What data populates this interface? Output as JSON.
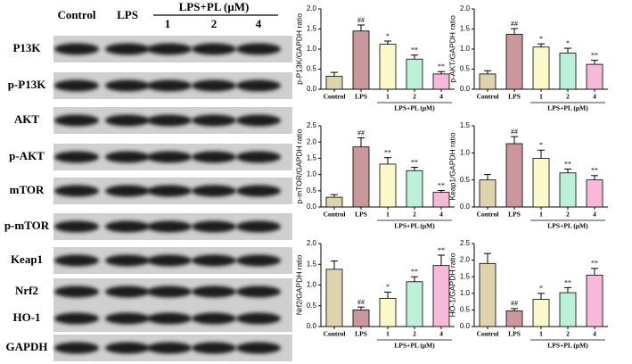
{
  "blot": {
    "headers": {
      "control": "Control",
      "lps": "LPS",
      "group": "LPS+PL (μM)",
      "doses": [
        "1",
        "2",
        "4"
      ]
    },
    "rows": [
      "P13K",
      "p-P13K",
      "AKT",
      "p-AKT",
      "mTOR",
      "p-mTOR",
      "Keap1",
      "Nrf2",
      "HO-1",
      "GAPDH"
    ]
  },
  "chart_data": [
    {
      "type": "bar",
      "ylabel": "p-P13K/GAPDH ratio",
      "categories": [
        "Control",
        "LPS",
        "1",
        "2",
        "4"
      ],
      "group_label": "LPS+PL (μM)",
      "values": [
        0.32,
        1.45,
        1.12,
        0.75,
        0.38
      ],
      "errors": [
        0.1,
        0.15,
        0.08,
        0.1,
        0.06
      ],
      "annotations": [
        null,
        "##",
        "*",
        "**",
        "**"
      ],
      "colors": [
        "#ddd3ad",
        "#c9979c",
        "#fbf8c9",
        "#bdf0d8",
        "#f7b9da"
      ],
      "ylim": [
        0,
        2
      ],
      "yticks": [
        {
          "value": 0,
          "label": "0.0"
        },
        0.5,
        {
          "value": 1,
          "label": "1.0"
        },
        1.5,
        {
          "value": 2,
          "label": "2.0"
        }
      ]
    },
    {
      "type": "bar",
      "ylabel": "p-AKT/GAPDH ratio",
      "categories": [
        "Control",
        "LPS",
        "1",
        "2",
        "4"
      ],
      "group_label": "LPS+PL (μM)",
      "values": [
        0.38,
        1.37,
        1.05,
        0.9,
        0.62
      ],
      "errors": [
        0.08,
        0.14,
        0.08,
        0.12,
        0.1
      ],
      "annotations": [
        null,
        "##",
        "*",
        "*",
        "**"
      ],
      "colors": [
        "#ddd3ad",
        "#c9979c",
        "#fbf8c9",
        "#bdf0d8",
        "#f7b9da"
      ],
      "ylim": [
        0,
        2
      ],
      "yticks": [
        {
          "value": 0,
          "label": "0.0"
        },
        0.5,
        {
          "value": 1,
          "label": "1.0"
        },
        1.5,
        {
          "value": 2,
          "label": "2.0"
        }
      ]
    },
    {
      "type": "bar",
      "ylabel": "p-mTOR/GAPDH ratio",
      "categories": [
        "Control",
        "LPS",
        "1",
        "2",
        "4"
      ],
      "group_label": "LPS+PL (μM)",
      "values": [
        0.3,
        1.85,
        1.32,
        1.12,
        0.45
      ],
      "errors": [
        0.08,
        0.28,
        0.2,
        0.1,
        0.06
      ],
      "annotations": [
        null,
        "##",
        "**",
        "**",
        "**"
      ],
      "colors": [
        "#ddd3ad",
        "#c9979c",
        "#fbf8c9",
        "#bdf0d8",
        "#f7b9da"
      ],
      "ylim": [
        0,
        2.5
      ],
      "yticks": [
        {
          "value": 0,
          "label": "0.0"
        },
        0.5,
        {
          "value": 1,
          "label": "1.0"
        },
        1.5,
        {
          "value": 2,
          "label": "2.0"
        },
        2.5
      ]
    },
    {
      "type": "bar",
      "ylabel": "Keap1/GAPDH ratio",
      "categories": [
        "Control",
        "LPS",
        "1",
        "2",
        "4"
      ],
      "group_label": "LPS+PL (μM)",
      "values": [
        0.5,
        1.17,
        0.9,
        0.63,
        0.5
      ],
      "errors": [
        0.1,
        0.13,
        0.15,
        0.07,
        0.08
      ],
      "annotations": [
        null,
        "##",
        "*",
        "**",
        "**"
      ],
      "colors": [
        "#ddd3ad",
        "#c9979c",
        "#fbf8c9",
        "#bdf0d8",
        "#f7b9da"
      ],
      "ylim": [
        0,
        1.5
      ],
      "yticks": [
        {
          "value": 0,
          "label": "0.0"
        },
        0.5,
        {
          "value": 1,
          "label": "1.0"
        },
        1.5
      ]
    },
    {
      "type": "bar",
      "ylabel": "Nrf2/GAPDH ratio",
      "categories": [
        "Control",
        "LPS",
        "1",
        "2",
        "4"
      ],
      "group_label": "LPS+PL (μM)",
      "values": [
        1.38,
        0.4,
        0.68,
        1.08,
        1.47
      ],
      "errors": [
        0.2,
        0.07,
        0.15,
        0.12,
        0.25
      ],
      "annotations": [
        null,
        "##",
        "*",
        "**",
        "**"
      ],
      "colors": [
        "#ddd3ad",
        "#c9979c",
        "#fbf8c9",
        "#bdf0d8",
        "#f7b9da"
      ],
      "ylim": [
        0,
        2
      ],
      "yticks": [
        {
          "value": 0,
          "label": "0.0"
        },
        0.5,
        {
          "value": 1,
          "label": "1.0"
        },
        1.5,
        {
          "value": 2,
          "label": "2.0"
        }
      ]
    },
    {
      "type": "bar",
      "ylabel": "HO-1/GAPDH ratio",
      "categories": [
        "Control",
        "LPS",
        "1",
        "2",
        "4"
      ],
      "group_label": "LPS+PL (μM)",
      "values": [
        1.9,
        0.47,
        0.82,
        1.02,
        1.55
      ],
      "errors": [
        0.3,
        0.07,
        0.18,
        0.15,
        0.2
      ],
      "annotations": [
        null,
        "##",
        "*",
        "**",
        "**"
      ],
      "colors": [
        "#ddd3ad",
        "#c9979c",
        "#fbf8c9",
        "#bdf0d8",
        "#f7b9da"
      ],
      "ylim": [
        0,
        2.5
      ],
      "yticks": [
        {
          "value": 0,
          "label": "0.0"
        },
        0.5,
        {
          "value": 1,
          "label": "1.0"
        },
        1.5,
        {
          "value": 2,
          "label": "2.0"
        },
        2.5
      ]
    }
  ]
}
